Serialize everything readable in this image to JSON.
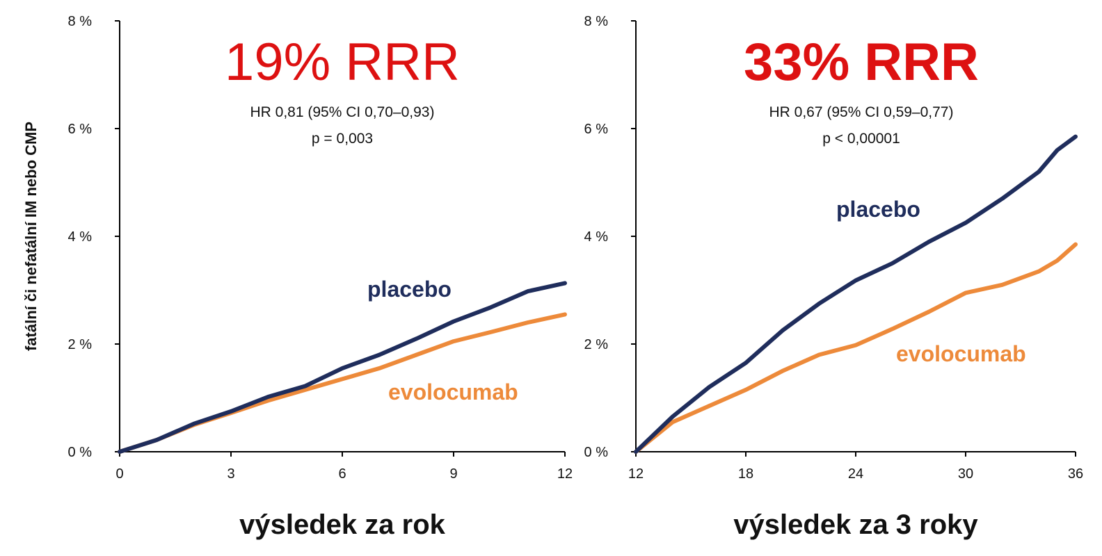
{
  "colors": {
    "placebo": "#1f2d5c",
    "evolocumab": "#ed8a3a",
    "rrr": "#dd1111",
    "axis": "#000000"
  },
  "y_axis_title": "fatální či nefatální IM nebo CMP",
  "chart_data": [
    {
      "type": "line",
      "xlabel": "výsledek za rok",
      "ylabel": "fatální či nefatální IM nebo CMP",
      "xlim": [
        0,
        12
      ],
      "ylim": [
        0,
        8
      ],
      "x_ticks": [
        0,
        3,
        6,
        9,
        12
      ],
      "x_tick_labels": [
        "0",
        "3",
        "6",
        "9",
        "12"
      ],
      "y_ticks": [
        0,
        2,
        4,
        6,
        8
      ],
      "y_tick_labels": [
        "0 %",
        "2 %",
        "4 %",
        "6 %",
        "8 %"
      ],
      "annotations": {
        "rrr": "19% RRR",
        "hr": "HR 0,81 (95% CI 0,70–0,93)",
        "p": "p = 0,003"
      },
      "series": [
        {
          "name": "placebo",
          "color": "#1f2d5c",
          "x": [
            0,
            1,
            2,
            3,
            4,
            5,
            6,
            7,
            8,
            9,
            10,
            11,
            12
          ],
          "y": [
            0,
            0.22,
            0.52,
            0.75,
            1.02,
            1.22,
            1.55,
            1.8,
            2.1,
            2.42,
            2.68,
            2.98,
            3.13
          ]
        },
        {
          "name": "evolocumab",
          "color": "#ed8a3a",
          "x": [
            0,
            1,
            2,
            3,
            4,
            5,
            6,
            7,
            8,
            9,
            10,
            11,
            12
          ],
          "y": [
            0,
            0.22,
            0.5,
            0.72,
            0.95,
            1.15,
            1.35,
            1.55,
            1.8,
            2.05,
            2.22,
            2.4,
            2.55
          ]
        }
      ]
    },
    {
      "type": "line",
      "xlabel": "výsledek za 3 roky",
      "ylabel": "",
      "xlim": [
        12,
        36
      ],
      "ylim": [
        0,
        8
      ],
      "x_ticks": [
        12,
        18,
        24,
        30,
        36
      ],
      "x_tick_labels": [
        "12",
        "18",
        "24",
        "30",
        "36"
      ],
      "y_ticks": [
        0,
        2,
        4,
        6,
        8
      ],
      "y_tick_labels": [
        "0 %",
        "2 %",
        "4 %",
        "6 %",
        "8 %"
      ],
      "annotations": {
        "rrr": "33% RRR",
        "hr": "HR 0,67 (95% CI 0,59–0,77)",
        "p": "p < 0,00001"
      },
      "series": [
        {
          "name": "placebo",
          "color": "#1f2d5c",
          "x": [
            12,
            14,
            16,
            18,
            20,
            22,
            24,
            26,
            28,
            30,
            32,
            34,
            35,
            36
          ],
          "y": [
            0,
            0.65,
            1.2,
            1.65,
            2.25,
            2.75,
            3.18,
            3.5,
            3.9,
            4.25,
            4.7,
            5.2,
            5.6,
            5.85
          ]
        },
        {
          "name": "evolocumab",
          "color": "#ed8a3a",
          "x": [
            12,
            14,
            16,
            18,
            20,
            22,
            24,
            26,
            28,
            30,
            32,
            34,
            35,
            36
          ],
          "y": [
            0,
            0.55,
            0.85,
            1.15,
            1.5,
            1.8,
            1.98,
            2.28,
            2.6,
            2.95,
            3.1,
            3.35,
            3.55,
            3.85
          ]
        }
      ]
    }
  ]
}
